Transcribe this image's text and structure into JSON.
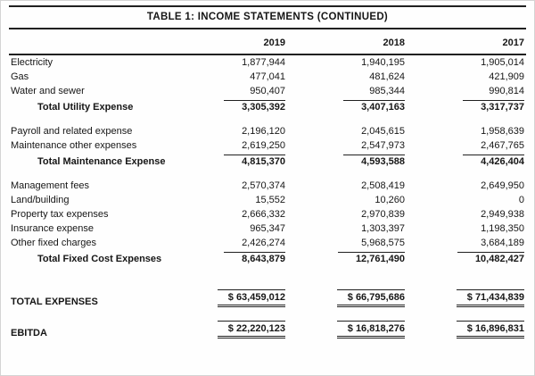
{
  "table": {
    "title": "TABLE 1: INCOME STATEMENTS (CONTINUED)",
    "columns": [
      "2019",
      "2018",
      "2017"
    ],
    "sections": [
      {
        "name": "utility-expense",
        "rows": [
          {
            "label": "Electricity",
            "values": [
              "1,877,944",
              "1,940,195",
              "1,905,014"
            ],
            "type": "item"
          },
          {
            "label": "Gas",
            "values": [
              "477,041",
              "481,624",
              "421,909"
            ],
            "type": "item"
          },
          {
            "label": "Water and sewer",
            "values": [
              "950,407",
              "985,344",
              "990,814"
            ],
            "type": "item"
          },
          {
            "label": "Total Utility Expense",
            "values": [
              "3,305,392",
              "3,407,163",
              "3,317,737"
            ],
            "type": "subtotal"
          }
        ]
      },
      {
        "name": "maintenance-expense",
        "rows": [
          {
            "label": "Payroll and related expense",
            "values": [
              "2,196,120",
              "2,045,615",
              "1,958,639"
            ],
            "type": "item"
          },
          {
            "label": "Maintenance other expenses",
            "values": [
              "2,619,250",
              "2,547,973",
              "2,467,765"
            ],
            "type": "item"
          },
          {
            "label": "Total Maintenance Expense",
            "values": [
              "4,815,370",
              "4,593,588",
              "4,426,404"
            ],
            "type": "subtotal"
          }
        ]
      },
      {
        "name": "fixed-cost-expense",
        "rows": [
          {
            "label": "Management fees",
            "values": [
              "2,570,374",
              "2,508,419",
              "2,649,950"
            ],
            "type": "item"
          },
          {
            "label": "Land/building",
            "values": [
              "15,552",
              "10,260",
              "0"
            ],
            "type": "item"
          },
          {
            "label": "Property tax expenses",
            "values": [
              "2,666,332",
              "2,970,839",
              "2,949,938"
            ],
            "type": "item"
          },
          {
            "label": "Insurance expense",
            "values": [
              "965,347",
              "1,303,397",
              "1,198,350"
            ],
            "type": "item"
          },
          {
            "label": "Other fixed charges",
            "values": [
              "2,426,274",
              "5,968,575",
              "3,684,189"
            ],
            "type": "item"
          },
          {
            "label": "Total Fixed Cost Expenses",
            "values": [
              "8,643,879",
              "12,761,490",
              "10,482,427"
            ],
            "type": "subtotal"
          }
        ]
      }
    ],
    "grand_totals": [
      {
        "label": "TOTAL EXPENSES",
        "values": [
          "$ 63,459,012",
          "$ 66,795,686",
          "$ 71,434,839"
        ]
      },
      {
        "label": "EBITDA",
        "values": [
          "$ 22,220,123",
          "$ 16,818,276",
          "$ 16,896,831"
        ]
      }
    ]
  }
}
